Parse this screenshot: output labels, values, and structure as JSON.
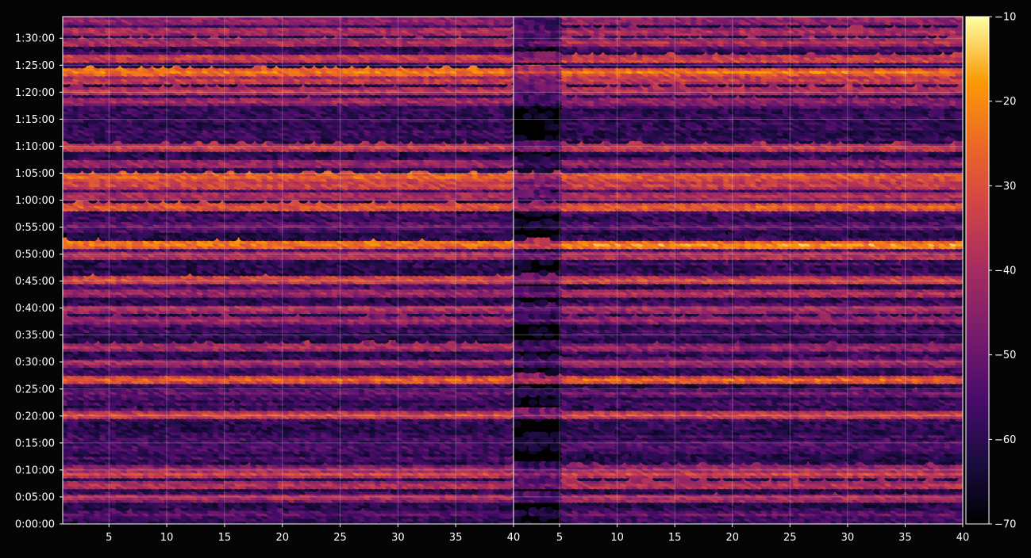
{
  "chart_data": {
    "type": "heatmap",
    "panels": [
      {
        "name": "left",
        "xlim": [
          1,
          40
        ],
        "xticks": [
          5,
          10,
          15,
          20,
          25,
          30,
          35,
          40
        ],
        "xticklabels": [
          "5",
          "10",
          "15",
          "20",
          "25",
          "30",
          "35",
          "40"
        ]
      },
      {
        "name": "right",
        "xlim": [
          1,
          40
        ],
        "xticks": [
          5,
          10,
          15,
          20,
          25,
          30,
          35,
          40
        ],
        "xticklabels": [
          "5",
          "10",
          "15",
          "20",
          "25",
          "30",
          "35",
          "40"
        ]
      }
    ],
    "ylim_seconds": [
      0,
      5640
    ],
    "yticks_seconds": [
      0,
      300,
      600,
      900,
      1200,
      1500,
      1800,
      2100,
      2400,
      2700,
      3000,
      3300,
      3600,
      3900,
      4200,
      4500,
      4800,
      5100,
      5400
    ],
    "yticklabels": [
      "0:00:00",
      "0:05:00",
      "0:10:00",
      "0:15:00",
      "0:20:00",
      "0:25:00",
      "0:30:00",
      "0:35:00",
      "0:40:00",
      "0:45:00",
      "0:50:00",
      "0:55:00",
      "1:00:00",
      "1:05:00",
      "1:10:00",
      "1:15:00",
      "1:20:00",
      "1:25:00",
      "1:30:00"
    ],
    "grid": true,
    "colormap": "inferno",
    "colorbar": {
      "vmin": -70,
      "vmax": -10,
      "ticks": [
        -70,
        -60,
        -50,
        -40,
        -30,
        -20,
        -10
      ],
      "ticklabels": [
        "−70",
        "−60",
        "−50",
        "−40",
        "−30",
        "−20",
        "−10"
      ]
    },
    "bands": [
      {
        "t": 5610,
        "level": -42
      },
      {
        "t": 5490,
        "level": -38
      },
      {
        "t": 5370,
        "level": -40
      },
      {
        "t": 5190,
        "level": -32
      },
      {
        "t": 5040,
        "level": -25
      },
      {
        "t": 4950,
        "level": -35
      },
      {
        "t": 4830,
        "level": -38
      },
      {
        "t": 4710,
        "level": -42
      },
      {
        "t": 4200,
        "level": -35
      },
      {
        "t": 4020,
        "level": -42
      },
      {
        "t": 3870,
        "level": -27
      },
      {
        "t": 3780,
        "level": -33
      },
      {
        "t": 3660,
        "level": -38
      },
      {
        "t": 3540,
        "level": -26
      },
      {
        "t": 3330,
        "level": -50
      },
      {
        "t": 3120,
        "level": -22
      },
      {
        "t": 3000,
        "level": -36
      },
      {
        "t": 2730,
        "level": -30
      },
      {
        "t": 2580,
        "level": -40
      },
      {
        "t": 2400,
        "level": -40
      },
      {
        "t": 2280,
        "level": -42
      },
      {
        "t": 1980,
        "level": -40
      },
      {
        "t": 1800,
        "level": -42
      },
      {
        "t": 1620,
        "level": -27
      },
      {
        "t": 1470,
        "level": -48
      },
      {
        "t": 1230,
        "level": -34
      },
      {
        "t": 870,
        "level": -52
      },
      {
        "t": 630,
        "level": -42
      },
      {
        "t": 570,
        "level": -34
      },
      {
        "t": 450,
        "level": -38
      },
      {
        "t": 300,
        "level": -40
      },
      {
        "t": 120,
        "level": -52
      }
    ]
  }
}
